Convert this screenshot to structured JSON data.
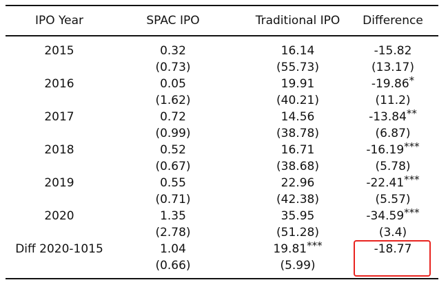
{
  "table": {
    "headers": [
      "IPO Year",
      "SPAC IPO",
      "Traditional IPO",
      "Difference"
    ],
    "rows": [
      {
        "year": "2015",
        "spac": "0.32",
        "spac_se": "(0.73)",
        "trad": "16.14",
        "trad_stars": "",
        "trad_se": "(55.73)",
        "diff": "-15.82",
        "diff_stars": "",
        "diff_se": "(13.17)"
      },
      {
        "year": "2016",
        "spac": "0.05",
        "spac_se": "(1.62)",
        "trad": "19.91",
        "trad_stars": "",
        "trad_se": "(40.21)",
        "diff": "-19.86",
        "diff_stars": "*",
        "diff_se": "(11.2)"
      },
      {
        "year": "2017",
        "spac": "0.72",
        "spac_se": "(0.99)",
        "trad": "14.56",
        "trad_stars": "",
        "trad_se": "(38.78)",
        "diff": "-13.84",
        "diff_stars": "**",
        "diff_se": "(6.87)"
      },
      {
        "year": "2018",
        "spac": "0.52",
        "spac_se": "(0.67)",
        "trad": "16.71",
        "trad_stars": "",
        "trad_se": "(38.68)",
        "diff": "-16.19",
        "diff_stars": "***",
        "diff_se": "(5.78)"
      },
      {
        "year": "2019",
        "spac": "0.55",
        "spac_se": "(0.71)",
        "trad": "22.96",
        "trad_stars": "",
        "trad_se": "(42.38)",
        "diff": "-22.41",
        "diff_stars": "***",
        "diff_se": "(5.57)"
      },
      {
        "year": "2020",
        "spac": "1.35",
        "spac_se": "(2.78)",
        "trad": "35.95",
        "trad_stars": "",
        "trad_se": "(51.28)",
        "diff": "-34.59",
        "diff_stars": "***",
        "diff_se": "(3.4)"
      },
      {
        "year": "Diff 2020-1015",
        "spac": "1.04",
        "spac_se": "(0.66)",
        "trad": "19.81",
        "trad_stars": "***",
        "trad_se": "(5.99)",
        "diff": "-18.77",
        "diff_stars": "",
        "diff_se": ""
      }
    ]
  },
  "colors": {
    "highlight": "#e8231f",
    "rule": "#111111"
  }
}
